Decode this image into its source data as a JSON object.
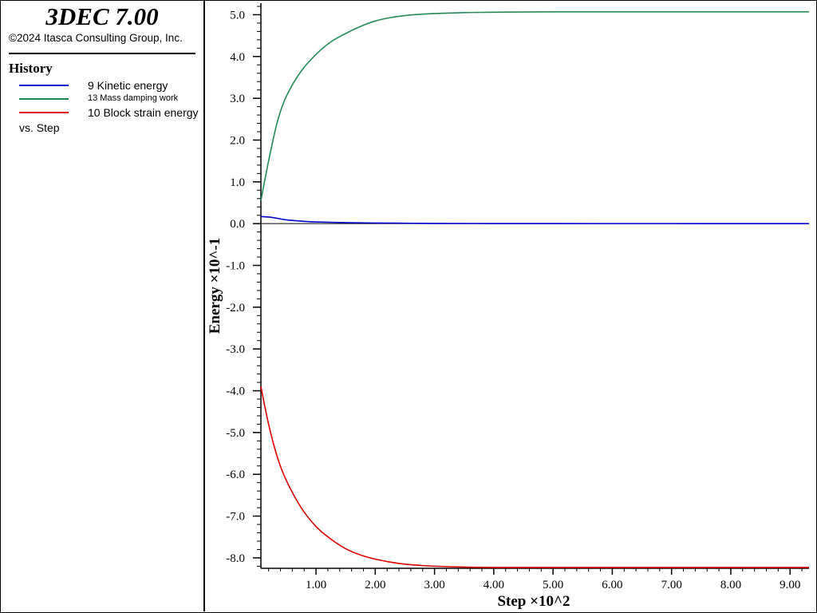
{
  "app": {
    "title": "3DEC 7.00",
    "copyright": "©2024 Itasca Consulting Group, Inc."
  },
  "legend": {
    "heading": "History",
    "vs_text": "vs. Step",
    "items": [
      {
        "label": "9 Kinetic energy",
        "color": "#0000cc"
      },
      {
        "label": "13 Mass damping work",
        "color": "#228b57"
      },
      {
        "label": "10 Block strain energy",
        "color": "#dd0000"
      }
    ]
  },
  "chart_data": {
    "type": "line",
    "xlabel": "Step ×10^2",
    "ylabel": "Energy ×10^-1",
    "xlim": [
      0.07,
      9.32
    ],
    "ylim": [
      -8.25,
      5.2
    ],
    "x_ticks": [
      "1.00",
      "2.00",
      "3.00",
      "4.00",
      "5.00",
      "6.00",
      "7.00",
      "8.00",
      "9.00"
    ],
    "y_ticks": [
      "5.0",
      "4.0",
      "3.0",
      "2.0",
      "1.0",
      "0.0",
      "-1.0",
      "-2.0",
      "-3.0",
      "-4.0",
      "-5.0",
      "-6.0",
      "-7.0",
      "-8.0"
    ],
    "grid": false,
    "series": [
      {
        "name": "9 Kinetic energy",
        "color": "#0000cc",
        "x": [
          0.07,
          0.25,
          0.5,
          0.75,
          1.0,
          1.5,
          2.0,
          2.5,
          3.0,
          4.0,
          5.0,
          6.0,
          7.0,
          8.0,
          9.0,
          9.32
        ],
        "y": [
          0.17,
          0.15,
          0.09,
          0.06,
          0.04,
          0.025,
          0.015,
          0.01,
          0.005,
          0.003,
          0.002,
          0.001,
          0.001,
          0.0,
          0.0,
          0.0
        ]
      },
      {
        "name": "13 Mass damping work",
        "color": "#228b57",
        "x": [
          0.07,
          0.2,
          0.35,
          0.5,
          0.75,
          1.0,
          1.25,
          1.5,
          1.75,
          2.0,
          2.25,
          2.5,
          2.75,
          3.0,
          3.5,
          4.0,
          5.0,
          6.0,
          7.0,
          8.0,
          9.0,
          9.32
        ],
        "y": [
          0.55,
          1.5,
          2.45,
          3.05,
          3.65,
          4.05,
          4.35,
          4.55,
          4.72,
          4.85,
          4.93,
          4.98,
          5.01,
          5.03,
          5.05,
          5.06,
          5.07,
          5.07,
          5.07,
          5.07,
          5.07,
          5.07
        ]
      },
      {
        "name": "10 Block strain energy",
        "color": "#dd0000",
        "x": [
          0.07,
          0.2,
          0.35,
          0.5,
          0.75,
          1.0,
          1.25,
          1.5,
          1.75,
          2.0,
          2.25,
          2.5,
          2.75,
          3.0,
          3.5,
          4.0,
          5.0,
          6.0,
          7.0,
          8.0,
          9.0,
          9.32
        ],
        "y": [
          -3.9,
          -4.8,
          -5.6,
          -6.15,
          -6.8,
          -7.25,
          -7.55,
          -7.78,
          -7.93,
          -8.03,
          -8.1,
          -8.15,
          -8.18,
          -8.2,
          -8.22,
          -8.23,
          -8.23,
          -8.23,
          -8.23,
          -8.23,
          -8.23,
          -8.23
        ]
      }
    ]
  }
}
